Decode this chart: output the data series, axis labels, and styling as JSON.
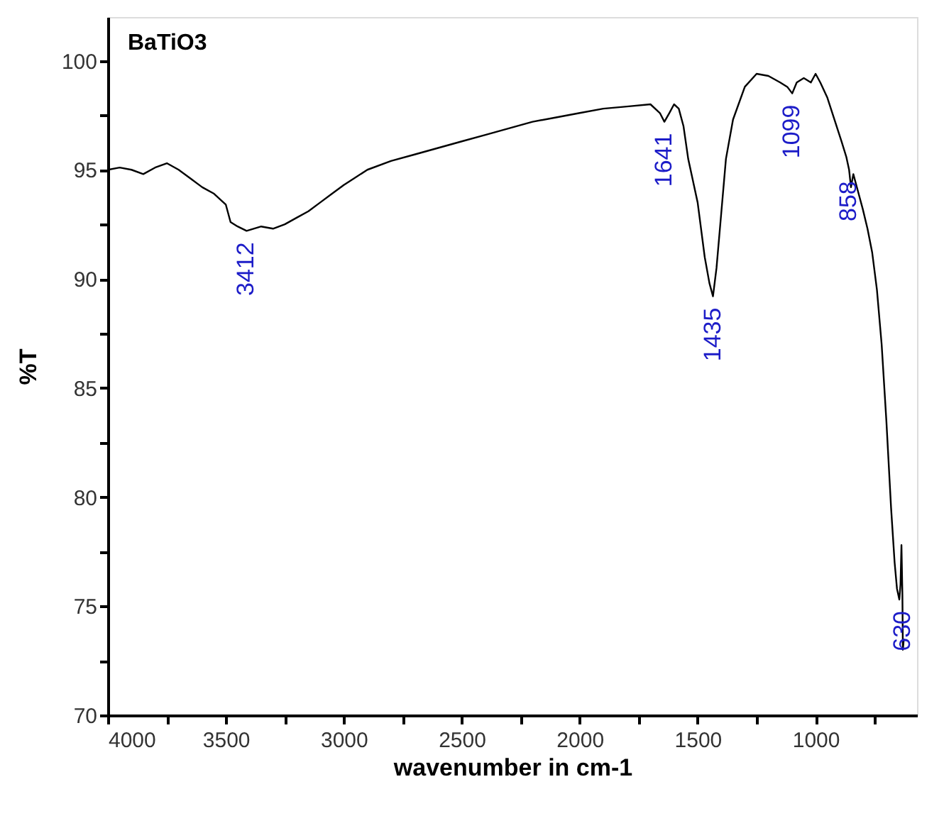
{
  "chart_data": {
    "type": "line",
    "title": "BaTiO3",
    "xlabel": "wavenumber in cm-1",
    "ylabel": "%T",
    "xlim": [
      4000,
      570
    ],
    "ylim": [
      70,
      102
    ],
    "xticks": [
      4000,
      {
        "value": 3750,
        "label": null
      },
      3500,
      {
        "value": 3250,
        "label": null
      },
      3000,
      {
        "value": 2750,
        "label": null
      },
      2500,
      {
        "value": 2250,
        "label": null
      },
      2000,
      {
        "value": 1750,
        "label": null
      },
      1500,
      {
        "value": 1250,
        "label": null
      },
      1000,
      {
        "value": 750,
        "label": null
      }
    ],
    "yticks": [
      70,
      {
        "value": 72.5,
        "label": null
      },
      75,
      {
        "value": 77.5,
        "label": null
      },
      80,
      {
        "value": 82.5,
        "label": null
      },
      85,
      {
        "value": 87.5,
        "label": null
      },
      90,
      {
        "value": 92.5,
        "label": null
      },
      95,
      {
        "value": 97.5,
        "label": null
      },
      100
    ],
    "grid": false,
    "marker": "none",
    "line_style": "solid",
    "series": [
      {
        "color": "#000000",
        "x": [
          4000,
          3950,
          3900,
          3850,
          3800,
          3750,
          3700,
          3650,
          3600,
          3550,
          3500,
          3480,
          3450,
          3412,
          3350,
          3300,
          3250,
          3200,
          3150,
          3100,
          3050,
          3000,
          2900,
          2800,
          2700,
          2600,
          2500,
          2400,
          2300,
          2200,
          2100,
          2000,
          1900,
          1800,
          1700,
          1660,
          1641,
          1620,
          1600,
          1580,
          1560,
          1540,
          1500,
          1470,
          1450,
          1435,
          1420,
          1400,
          1380,
          1350,
          1300,
          1250,
          1200,
          1150,
          1120,
          1099,
          1080,
          1050,
          1020,
          1000,
          980,
          950,
          920,
          890,
          870,
          858,
          850,
          840,
          820,
          800,
          780,
          760,
          740,
          720,
          700,
          680,
          665,
          655,
          645,
          640,
          636,
          632,
          630,
          626
        ],
        "values": [
          95.0,
          95.1,
          95.0,
          94.8,
          95.1,
          95.3,
          95.0,
          94.6,
          94.2,
          93.9,
          93.4,
          92.6,
          92.4,
          92.2,
          92.4,
          92.3,
          92.5,
          92.8,
          93.1,
          93.5,
          93.9,
          94.3,
          95.0,
          95.4,
          95.7,
          96.0,
          96.3,
          96.6,
          96.9,
          97.2,
          97.4,
          97.6,
          97.8,
          97.9,
          98.0,
          97.6,
          97.2,
          97.6,
          98.0,
          97.8,
          97.0,
          95.5,
          93.5,
          91.0,
          89.8,
          89.2,
          90.5,
          93.0,
          95.5,
          97.3,
          98.8,
          99.4,
          99.3,
          99.0,
          98.8,
          98.5,
          99.0,
          99.2,
          99.0,
          99.4,
          99.0,
          98.3,
          97.3,
          96.3,
          95.6,
          95.0,
          94.2,
          94.8,
          94.0,
          93.2,
          92.3,
          91.2,
          89.5,
          87.0,
          83.5,
          79.5,
          77.0,
          75.8,
          75.3,
          76.0,
          77.8,
          75.5,
          73.0,
          73.5
        ]
      }
    ],
    "annotations": [
      {
        "text": "3412",
        "x": 3412,
        "y": 92.2
      },
      {
        "text": "1641",
        "x": 1641,
        "y": 97.2
      },
      {
        "text": "1435",
        "x": 1435,
        "y": 89.2
      },
      {
        "text": "1099",
        "x": 1099,
        "y": 98.5
      },
      {
        "text": "858",
        "x": 858,
        "y": 95.0
      },
      {
        "text": "630",
        "x": 630,
        "y": 75.3
      }
    ]
  }
}
